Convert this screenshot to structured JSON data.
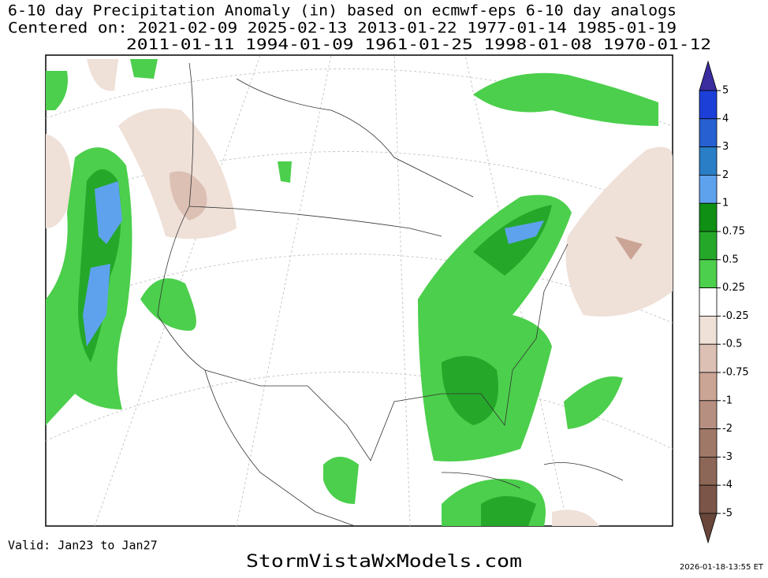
{
  "header": {
    "lines": [
      "6-10 day Precipitation Anomaly (in) based on ecmwf-eps 6-10 day analogs",
      "Centered on: 2021-02-09 2025-02-13 2013-01-22 1977-01-14 1985-01-19",
      "2011-01-11 1994-01-09 1961-01-25 1998-01-08 1970-01-12"
    ]
  },
  "legend": {
    "labels": [
      "5",
      "4",
      "3",
      "2",
      "1",
      "0.75",
      "0.5",
      "0.25",
      "-0.25",
      "-0.5",
      "-0.75",
      "-1",
      "-2",
      "-3",
      "-4",
      "-5"
    ],
    "colors": [
      "#3b2ca0",
      "#1c3fd8",
      "#2760d0",
      "#2a7ec6",
      "#5ea2ee",
      "#0f8f14",
      "#25a82a",
      "#4ccf4c",
      "#ffffff",
      "#efe0d8",
      "#dcc0b4",
      "#caa596",
      "#b68f80",
      "#a07868",
      "#8c6656",
      "#7a5548",
      "#68463a"
    ]
  },
  "footer": {
    "valid": "Valid: Jan23 to Jan27",
    "site": "StormVistaWxModels.com",
    "timestamp": "2026-01-18-13:55 ET"
  }
}
